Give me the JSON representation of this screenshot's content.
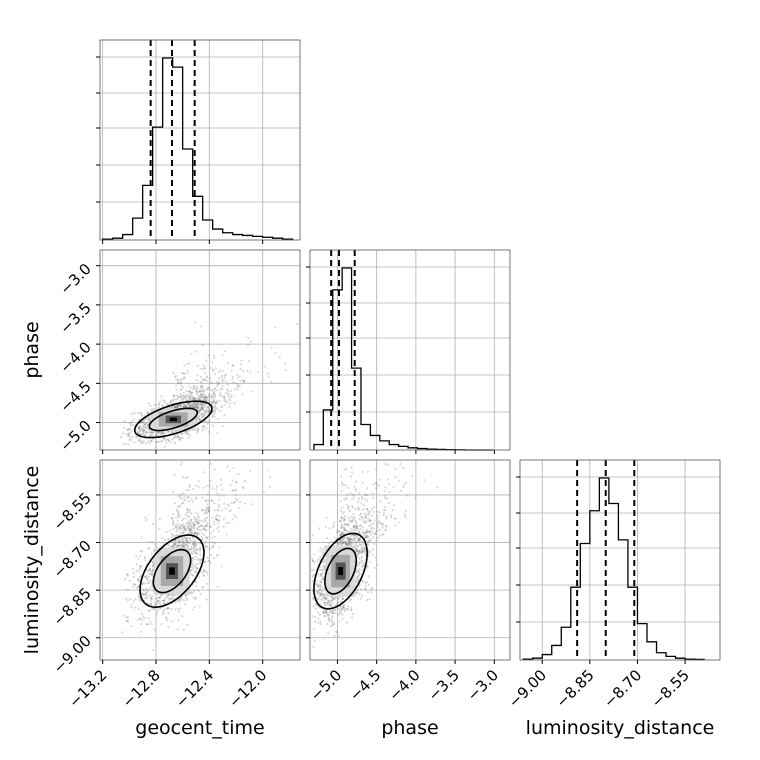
{
  "chart_data": {
    "type": "corner",
    "parameters": [
      "geocent_time",
      "phase",
      "luminosity_distance"
    ],
    "axis_ticks": {
      "geocent_time": [
        -13.2,
        -12.8,
        -12.4,
        -12.0
      ],
      "phase_x": [
        -5.0,
        -4.5,
        -4.0,
        -3.5,
        -3.0
      ],
      "phase_y": [
        -3.0,
        -3.5,
        -4.0,
        -4.5,
        -5.0
      ],
      "luminosity_distance_x": [
        -9.0,
        -8.85,
        -8.7,
        -8.55
      ],
      "luminosity_distance_y": [
        -8.55,
        -8.7,
        -8.85,
        -9.0
      ]
    },
    "tick_labels": {
      "geocent_time": [
        "−13.2",
        "−12.8",
        "−12.4",
        "−12.0"
      ],
      "phase_x": [
        "−5.0",
        "−4.5",
        "−4.0",
        "−3.5",
        "−3.0"
      ],
      "phase_y": [
        "−3.0",
        "−3.5",
        "−4.0",
        "−4.5",
        "−5.0"
      ],
      "luminosity_distance_x": [
        "−9.00",
        "−8.85",
        "−8.70",
        "−8.55"
      ],
      "luminosity_distance_y": [
        "−8.55",
        "−8.70",
        "−8.85",
        "−9.00"
      ]
    },
    "ranges": {
      "geocent_time": [
        -13.22,
        -11.72
      ],
      "phase": [
        -5.35,
        -2.8
      ],
      "luminosity_distance": [
        -9.07,
        -8.44
      ]
    },
    "histograms": {
      "geocent_time": {
        "edges": [
          -13.2,
          -13.125,
          -13.05,
          -12.975,
          -12.9,
          -12.825,
          -12.75,
          -12.675,
          -12.6,
          -12.525,
          -12.45,
          -12.375,
          -12.3,
          -12.225,
          -12.15,
          -12.075,
          -12.0,
          -11.925,
          -11.85,
          -11.775
        ],
        "counts": [
          0.5,
          1,
          3,
          12,
          30,
          62,
          100,
          95,
          50,
          24,
          11,
          6,
          4,
          3,
          2.5,
          2,
          1.5,
          1,
          0.5
        ]
      },
      "phase": {
        "edges": [
          -5.3,
          -5.18,
          -5.06,
          -4.94,
          -4.82,
          -4.7,
          -4.58,
          -4.46,
          -4.34,
          -4.22,
          -4.1,
          -3.98,
          -3.86,
          -3.74,
          -3.62,
          -3.5,
          -3.38,
          -3.26,
          -3.14,
          -3.02
        ],
        "counts": [
          3,
          22,
          88,
          100,
          45,
          14,
          8,
          5,
          3,
          2,
          1.2,
          0.8,
          0.5,
          0.3,
          0.2,
          0.1,
          0,
          0,
          0
        ]
      },
      "luminosity_distance": {
        "edges": [
          -9.06,
          -9.03,
          -9.0,
          -8.97,
          -8.94,
          -8.91,
          -8.88,
          -8.85,
          -8.82,
          -8.79,
          -8.76,
          -8.73,
          -8.7,
          -8.67,
          -8.64,
          -8.61,
          -8.58,
          -8.55,
          -8.52,
          -8.49
        ],
        "counts": [
          0.5,
          1,
          3,
          8,
          18,
          40,
          64,
          82,
          100,
          86,
          66,
          40,
          20,
          10,
          4,
          2,
          1,
          0.5,
          0.3
        ]
      }
    },
    "quantiles": {
      "geocent_time": [
        -12.84,
        -12.68,
        -12.51
      ],
      "phase": [
        -5.08,
        -4.98,
        -4.78
      ],
      "luminosity_distance": [
        -8.89,
        -8.8,
        -8.71
      ]
    },
    "contours": {
      "geocent_time_vs_phase": {
        "center": [
          -12.67,
          -4.96
        ],
        "outer": [
          0.29,
          0.25,
          0.55
        ],
        "inner": [
          0.18,
          0.15,
          0.55
        ]
      },
      "geocent_time_vs_luminosity_distance": {
        "center": [
          -12.68,
          -8.79
        ],
        "outer": [
          0.24,
          0.13,
          0.45
        ],
        "inner": [
          0.14,
          0.078,
          0.45
        ]
      },
      "phase_vs_luminosity_distance": {
        "center": [
          -4.96,
          -8.79
        ],
        "outer": [
          0.34,
          0.14,
          0.4
        ],
        "inner": [
          0.2,
          0.085,
          0.4
        ]
      }
    },
    "grid": true
  }
}
